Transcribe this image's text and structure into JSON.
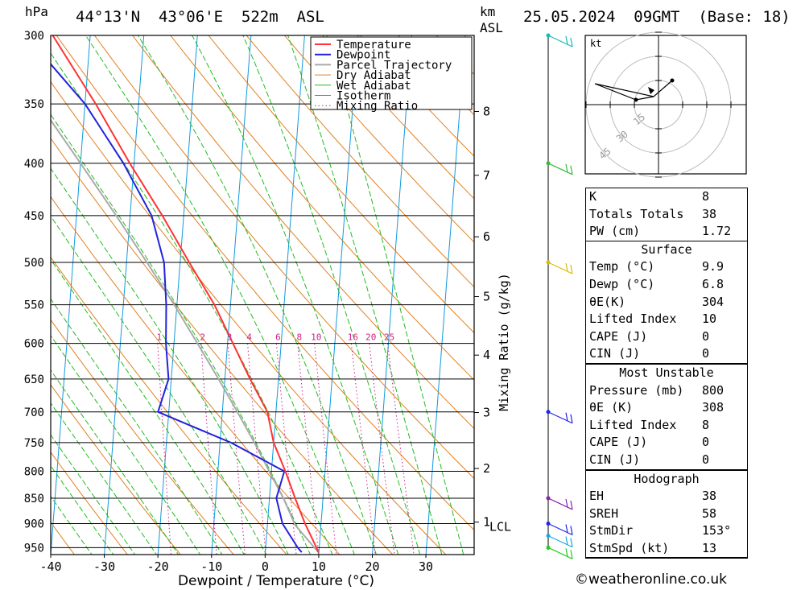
{
  "header": {
    "pressure_unit": "hPa",
    "location": "44°13'N  43°06'E  522m  ASL",
    "km_label": "km",
    "asl_label": "ASL",
    "datetime": "25.05.2024  09GMT  (Base: 18)"
  },
  "chart_data": {
    "type": "skew-t",
    "xlabel": "Dewpoint / Temperature (°C)",
    "y2label": "Mixing Ratio (g/kg)",
    "x_ticks": [
      -40,
      -30,
      -20,
      -10,
      0,
      10,
      20,
      30
    ],
    "x_range": [
      -40,
      39
    ],
    "pressure_levels": [
      300,
      350,
      400,
      450,
      500,
      550,
      600,
      650,
      700,
      750,
      800,
      850,
      900,
      950
    ],
    "p_range": [
      300,
      965
    ],
    "height_km_ticks": [
      {
        "km": "1",
        "p": 897
      },
      {
        "km": "2",
        "p": 795
      },
      {
        "km": "3",
        "p": 701
      },
      {
        "km": "4",
        "p": 616
      },
      {
        "km": "5",
        "p": 540
      },
      {
        "km": "6",
        "p": 472
      },
      {
        "km": "7",
        "p": 411
      },
      {
        "km": "8",
        "p": 356
      }
    ],
    "lcl_label": "LCL",
    "lcl_p": 903,
    "mixing_ratio_labels": [
      "1",
      "2",
      "3",
      "4",
      "6",
      "8",
      "10",
      "16",
      "20",
      "25"
    ],
    "mixing_ratio_values": [
      1,
      2,
      3,
      4,
      6,
      8,
      10,
      16,
      20,
      25
    ],
    "legend": [
      "Temperature",
      "Dewpoint",
      "Parcel Trajectory",
      "Dry Adiabat",
      "Wet Adiabat",
      "Isotherm",
      "Mixing Ratio"
    ],
    "colors": {
      "temperature": "#ff3333",
      "dewpoint": "#2222dd",
      "parcel": "#aaaaaa",
      "dry_adiabat": "#e08020",
      "wet_adiabat": "#22bb22",
      "isotherm": "#1199dd",
      "mixing_ratio": "#cc2288"
    },
    "temperature": [
      {
        "p": 960,
        "t": 9.9
      },
      {
        "p": 950,
        "t": 9.5
      },
      {
        "p": 900,
        "t": 7.0
      },
      {
        "p": 850,
        "t": 4.8
      },
      {
        "p": 800,
        "t": 2.6
      },
      {
        "p": 750,
        "t": 0.0
      },
      {
        "p": 700,
        "t": -1.6
      },
      {
        "p": 650,
        "t": -5.3
      },
      {
        "p": 600,
        "t": -9.0
      },
      {
        "p": 550,
        "t": -13.0
      },
      {
        "p": 500,
        "t": -18.3
      },
      {
        "p": 450,
        "t": -24.0
      },
      {
        "p": 400,
        "t": -30.8
      },
      {
        "p": 350,
        "t": -38.0
      },
      {
        "p": 300,
        "t": -47.0
      }
    ],
    "dewpoint": [
      {
        "p": 960,
        "t": 6.8
      },
      {
        "p": 950,
        "t": 6.0
      },
      {
        "p": 900,
        "t": 2.8
      },
      {
        "p": 850,
        "t": 1.3
      },
      {
        "p": 800,
        "t": 2.4
      },
      {
        "p": 750,
        "t": -8.0
      },
      {
        "p": 700,
        "t": -22.0
      },
      {
        "p": 650,
        "t": -20.5
      },
      {
        "p": 600,
        "t": -21.5
      },
      {
        "p": 550,
        "t": -22.0
      },
      {
        "p": 500,
        "t": -23.0
      },
      {
        "p": 450,
        "t": -26.0
      },
      {
        "p": 400,
        "t": -32.0
      },
      {
        "p": 350,
        "t": -40.0
      },
      {
        "p": 300,
        "t": -52.0
      }
    ],
    "parcel": [
      {
        "p": 960,
        "t": 9.9
      },
      {
        "p": 903,
        "t": 5.2
      },
      {
        "p": 850,
        "t": 2.6
      },
      {
        "p": 800,
        "t": -0.4
      },
      {
        "p": 750,
        "t": -3.6
      },
      {
        "p": 700,
        "t": -7.2
      },
      {
        "p": 650,
        "t": -11.2
      },
      {
        "p": 600,
        "t": -15.6
      },
      {
        "p": 550,
        "t": -20.5
      },
      {
        "p": 500,
        "t": -26.2
      },
      {
        "p": 450,
        "t": -32.6
      },
      {
        "p": 400,
        "t": -40.0
      },
      {
        "p": 350,
        "t": -48.5
      },
      {
        "p": 300,
        "t": -58.0
      }
    ],
    "wind_barbs": [
      {
        "p": 300,
        "color": "#11bbbb"
      },
      {
        "p": 400,
        "color": "#33bb33"
      },
      {
        "p": 500,
        "color": "#ddbb00"
      },
      {
        "p": 700,
        "color": "#2222ee"
      },
      {
        "p": 850,
        "color": "#8822aa"
      },
      {
        "p": 900,
        "color": "#2222ee"
      },
      {
        "p": 925,
        "color": "#11aadd"
      },
      {
        "p": 950,
        "color": "#22cc22"
      }
    ]
  },
  "hodograph": {
    "unit_label": "kt",
    "ring_labels": [
      "15",
      "30",
      "45"
    ]
  },
  "indices": {
    "general": [
      {
        "k": "K",
        "v": "8"
      },
      {
        "k": "Totals Totals",
        "v": "38"
      },
      {
        "k": "PW (cm)",
        "v": "1.72"
      }
    ],
    "surface_title": "Surface",
    "surface": [
      {
        "k": "Temp (°C)",
        "v": "9.9"
      },
      {
        "k": "Dewp (°C)",
        "v": "6.8"
      },
      {
        "k": "θE(K)",
        "v": "304"
      },
      {
        "k": "Lifted Index",
        "v": "10"
      },
      {
        "k": "CAPE (J)",
        "v": "0"
      },
      {
        "k": "CIN (J)",
        "v": "0"
      }
    ],
    "mu_title": "Most Unstable",
    "mu": [
      {
        "k": "Pressure (mb)",
        "v": "800"
      },
      {
        "k": "θE (K)",
        "v": "308"
      },
      {
        "k": "Lifted Index",
        "v": "8"
      },
      {
        "k": "CAPE (J)",
        "v": "0"
      },
      {
        "k": "CIN (J)",
        "v": "0"
      }
    ],
    "hodo_title": "Hodograph",
    "hodo": [
      {
        "k": "EH",
        "v": "38"
      },
      {
        "k": "SREH",
        "v": "58"
      },
      {
        "k": "StmDir",
        "v": "153°"
      },
      {
        "k": "StmSpd (kt)",
        "v": "13"
      }
    ]
  },
  "credit": "©weatheronline.co.uk"
}
